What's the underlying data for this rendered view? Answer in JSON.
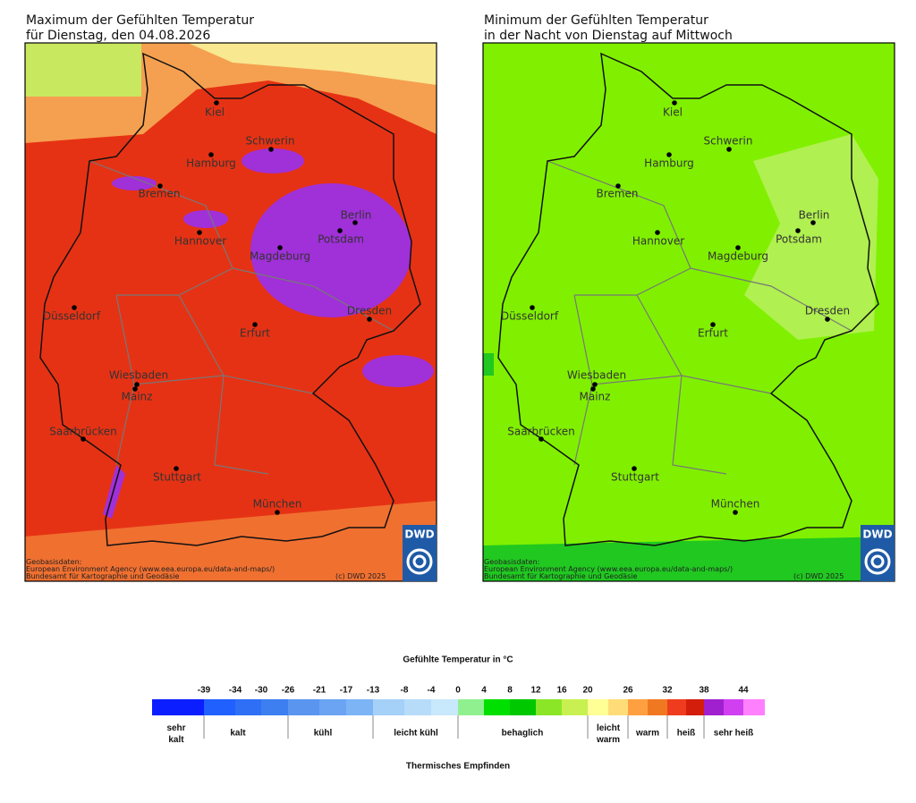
{
  "maps": [
    {
      "title": [
        "Maximum der Gefühlten Temperatur",
        "für Dienstag, den 04.08.2026"
      ],
      "cities": [
        "Kiel",
        "Schwerin",
        "Hamburg",
        "Bremen",
        "Berlin",
        "Potsdam",
        "Hannover",
        "Magdeburg",
        "Düsseldorf",
        "Dresden",
        "Erfurt",
        "Wiesbaden",
        "Mainz",
        "Saarbrücken",
        "Stuttgart",
        "München"
      ],
      "credits": [
        "Geobasisdaten:",
        "European Environment Agency (www.eea.europa.eu/data-and-maps/)",
        "Bundesamt für Kartographie und Geodäsie"
      ],
      "copyright": "(c) DWD 2025",
      "logo": "DWD"
    },
    {
      "title": [
        "Minimum der Gefühlten Temperatur",
        "in der Nacht von Dienstag auf Mittwoch"
      ],
      "cities": [
        "Kiel",
        "Schwerin",
        "Hamburg",
        "Bremen",
        "Berlin",
        "Potsdam",
        "Hannover",
        "Magdeburg",
        "Düsseldorf",
        "Dresden",
        "Erfurt",
        "Wiesbaden",
        "Mainz",
        "Saarbrücken",
        "Stuttgart",
        "München"
      ],
      "credits": [
        "Geobasisdaten:",
        "European Environment Agency (www.eea.europa.eu/data-and-maps/)",
        "Bundesamt für Kartographie und Geodäsie"
      ],
      "copyright": "(c) DWD 2025",
      "logo": "DWD"
    }
  ],
  "legend": {
    "title": "Gefühlte Temperatur in °C",
    "ticks": [
      -39,
      -34,
      -30,
      -26,
      -21,
      -17,
      -13,
      -8,
      -4,
      0,
      4,
      8,
      12,
      16,
      20,
      26,
      32,
      38,
      44
    ],
    "colors": [
      "#0a1eff",
      "#2060ff",
      "#2f6ff5",
      "#3d7ff0",
      "#5a96f0",
      "#6aa4f2",
      "#7cb4f5",
      "#a5d0f8",
      "#b6dcfa",
      "#c8e8fb",
      "#90f090",
      "#00e000",
      "#00c800",
      "#8ce628",
      "#c8f050",
      "#ffff96",
      "#ffdc78",
      "#ffa040",
      "#f07820",
      "#f03c1e",
      "#d21e0a",
      "#a020d0",
      "#d040f0",
      "#ff80ff"
    ],
    "categories": [
      "sehr kalt",
      "kalt",
      "kühl",
      "leicht kühl",
      "behaglich",
      "leicht warm",
      "warm",
      "heiß",
      "sehr heiß"
    ],
    "subtitle": "Thermisches Empfinden"
  }
}
